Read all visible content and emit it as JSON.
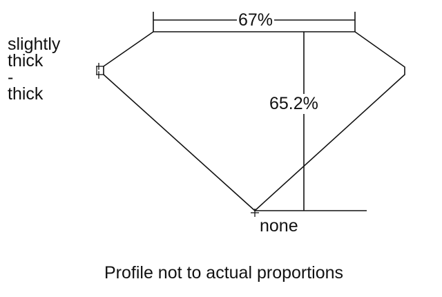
{
  "labels": {
    "table_percent": "67%",
    "depth_percent": "65.2%",
    "girdle_line1": "slightly",
    "girdle_line2": "thick",
    "girdle_line3": "-",
    "girdle_line4": "thick",
    "culet": "none",
    "note": "Profile not to actual proportions"
  },
  "colors": {
    "line": "#111111",
    "background": "#ffffff"
  }
}
